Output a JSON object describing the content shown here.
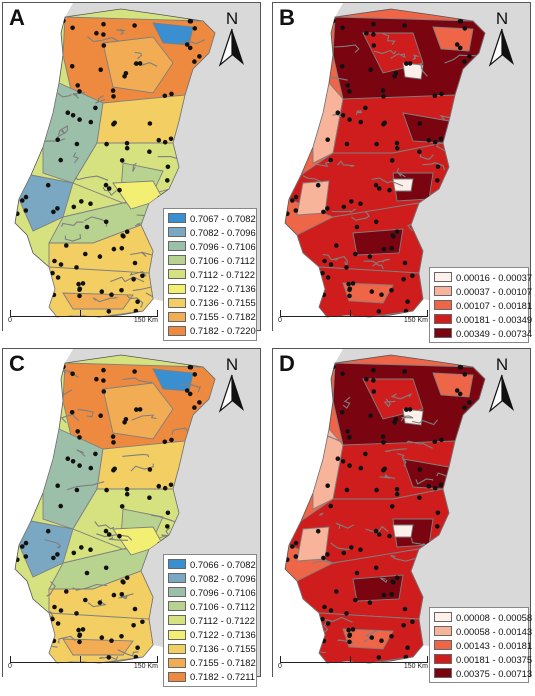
{
  "panels": [
    {
      "id": "A",
      "label": "A",
      "legend": [
        {
          "range": "0.7067 - 0.7082",
          "color": "#3a8fd1"
        },
        {
          "range": "0.7082 - 0.7096",
          "color": "#7aa8c2"
        },
        {
          "range": "0.7096 - 0.7106",
          "color": "#9bbfa8"
        },
        {
          "range": "0.7106 - 0.7112",
          "color": "#b8d38f"
        },
        {
          "range": "0.7112 - 0.7122",
          "color": "#d5e27f"
        },
        {
          "range": "0.7122 - 0.7136",
          "color": "#f2ef72"
        },
        {
          "range": "0.7136 - 0.7155",
          "color": "#f3cf63"
        },
        {
          "range": "0.7155 - 0.7182",
          "color": "#f2ad54"
        },
        {
          "range": "0.7182 - 0.7220",
          "color": "#ee8a3f"
        }
      ]
    },
    {
      "id": "B",
      "label": "B",
      "legend": [
        {
          "range": "0.00016 - 0.00037",
          "color": "#fdf0ea"
        },
        {
          "range": "0.00037 - 0.00107",
          "color": "#f8b39b"
        },
        {
          "range": "0.00107 - 0.00181",
          "color": "#ee6548"
        },
        {
          "range": "0.00181 - 0.00349",
          "color": "#cf1d1d"
        },
        {
          "range": "0.00349 - 0.00734",
          "color": "#7a0410"
        }
      ]
    },
    {
      "id": "C",
      "label": "C",
      "legend": [
        {
          "range": "0.7066 - 0.7082",
          "color": "#3a8fd1"
        },
        {
          "range": "0.7082 - 0.7096",
          "color": "#7aa8c2"
        },
        {
          "range": "0.7096 - 0.7106",
          "color": "#9bbfa8"
        },
        {
          "range": "0.7106 - 0.7112",
          "color": "#b8d38f"
        },
        {
          "range": "0.7112 - 0.7122",
          "color": "#d5e27f"
        },
        {
          "range": "0.7122 - 0.7136",
          "color": "#f2ef72"
        },
        {
          "range": "0.7136 - 0.7155",
          "color": "#f3cf63"
        },
        {
          "range": "0.7155 - 0.7182",
          "color": "#f2ad54"
        },
        {
          "range": "0.7182 - 0.7211",
          "color": "#ee8a3f"
        }
      ]
    },
    {
      "id": "D",
      "label": "D",
      "legend": [
        {
          "range": "0.00008 - 0.00058",
          "color": "#fdf0ea"
        },
        {
          "range": "0.00058 - 0.00143",
          "color": "#f8b39b"
        },
        {
          "range": "0.00143 - 0.00181",
          "color": "#ee6548"
        },
        {
          "range": "0.00181 - 0.00375",
          "color": "#cf1d1d"
        },
        {
          "range": "0.00375 - 0.00713",
          "color": "#7a0410"
        }
      ]
    }
  ],
  "north_label": "N",
  "scale": {
    "start": "0",
    "end": "150 Km"
  },
  "colors": {
    "background": "#d9d9d9",
    "sea_coast": "#ffffff",
    "boundary": "#7f7f7f",
    "sample_point": "#111111"
  }
}
